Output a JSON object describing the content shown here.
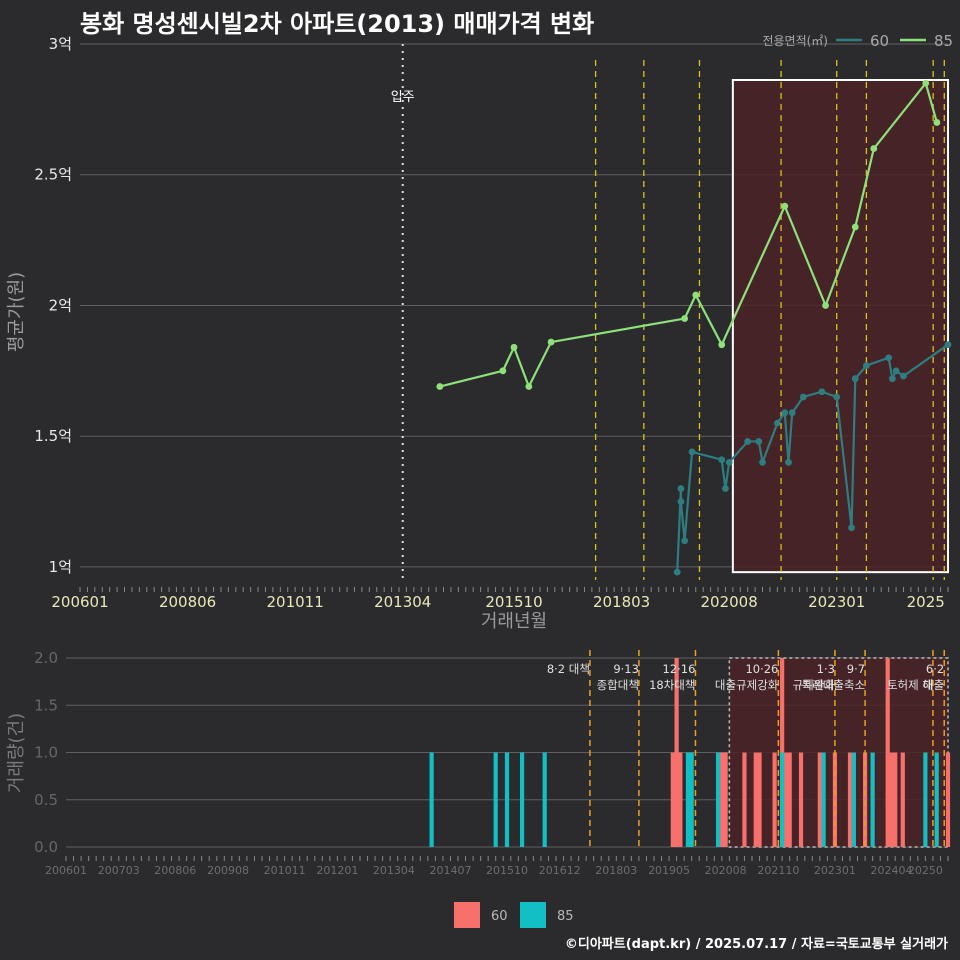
{
  "title": "봉화 명성센시빌2차 아파트(2013) 매매가격 변화",
  "credit": "©디아파트(dapt.kr) / 2025.07.17 / 자료=국토교통부 실거래가",
  "colors": {
    "bg": "#2b2b2d",
    "s60": "#2e7d80",
    "s85": "#8ee07a",
    "b60": "#f7706b",
    "b85": "#12bfc4",
    "policy": "#d9c21c",
    "policy_bottom": "#e8a21b",
    "highlight": "#4a2227"
  },
  "chart_data": [
    {
      "type": "line",
      "xlabel": "거래년월",
      "ylabel": "평균가(원)",
      "y_ticks": [
        "1억",
        "1.5억",
        "2억",
        "2.5억",
        "3억"
      ],
      "y_tick_values": [
        1.0,
        1.5,
        2.0,
        2.5,
        3.0
      ],
      "ylim": [
        0.95,
        3.0
      ],
      "x_tick_labels": [
        "200601",
        "200806",
        "201011",
        "201304",
        "201510",
        "201803",
        "202008",
        "202301",
        "2025"
      ],
      "xlim": [
        "2006-01",
        "2025-07"
      ],
      "legend_title": "전용면적(㎡)",
      "legend_position": "top-right",
      "annotation_move_in": {
        "label": "입주",
        "x": "2013-04"
      },
      "policy_lines": [
        "2017-08",
        "2018-09",
        "2019-12",
        "2021-10",
        "2023-01",
        "2023-09",
        "2025-03",
        "2025-06"
      ],
      "highlight_range": [
        "2020-09",
        "2025-07"
      ],
      "series": [
        {
          "name": "60",
          "points": [
            [
              "2019-06",
              0.98
            ],
            [
              "2019-07",
              1.3
            ],
            [
              "2019-07",
              1.25
            ],
            [
              "2019-08",
              1.1
            ],
            [
              "2019-10",
              1.44
            ],
            [
              "2020-06",
              1.41
            ],
            [
              "2020-07",
              1.3
            ],
            [
              "2020-08",
              1.4
            ],
            [
              "2021-01",
              1.48
            ],
            [
              "2021-04",
              1.48
            ],
            [
              "2021-05",
              1.4
            ],
            [
              "2021-09",
              1.55
            ],
            [
              "2021-11",
              1.59
            ],
            [
              "2021-12",
              1.4
            ],
            [
              "2022-01",
              1.59
            ],
            [
              "2022-04",
              1.65
            ],
            [
              "2022-09",
              1.67
            ],
            [
              "2023-01",
              1.65
            ],
            [
              "2023-05",
              1.15
            ],
            [
              "2023-06",
              1.72
            ],
            [
              "2023-09",
              1.77
            ],
            [
              "2024-03",
              1.8
            ],
            [
              "2024-04",
              1.72
            ],
            [
              "2024-05",
              1.75
            ],
            [
              "2024-07",
              1.73
            ],
            [
              "2025-07",
              1.85
            ]
          ]
        },
        {
          "name": "85",
          "points": [
            [
              "2014-02",
              1.69
            ],
            [
              "2015-07",
              1.75
            ],
            [
              "2015-10",
              1.84
            ],
            [
              "2016-02",
              1.69
            ],
            [
              "2016-08",
              1.86
            ],
            [
              "2019-08",
              1.95
            ],
            [
              "2019-11",
              2.04
            ],
            [
              "2020-06",
              1.85
            ],
            [
              "2021-11",
              2.38
            ],
            [
              "2022-10",
              2.0
            ],
            [
              "2023-06",
              2.3
            ],
            [
              "2023-11",
              2.6
            ],
            [
              "2025-01",
              2.85
            ],
            [
              "2025-04",
              2.7
            ]
          ]
        }
      ]
    },
    {
      "type": "bar",
      "ylabel": "거래량(건)",
      "y_ticks": [
        "0.0",
        "0.5",
        "1.0",
        "1.5",
        "2.0"
      ],
      "y_tick_values": [
        0.0,
        0.5,
        1.0,
        1.5,
        2.0
      ],
      "ylim": [
        0,
        2.0
      ],
      "x_tick_labels": [
        "200601",
        "200703",
        "200806",
        "200908",
        "201011",
        "201201",
        "201304",
        "201407",
        "201510",
        "201612",
        "201803",
        "201905",
        "202008",
        "202110",
        "202301",
        "202404",
        "20250"
      ],
      "legend_position": "bottom",
      "policy_labels": [
        {
          "x": "2017-08",
          "lines": [
            "8·2 대책"
          ]
        },
        {
          "x": "2018-09",
          "lines": [
            "9·13",
            "종합대책"
          ]
        },
        {
          "x": "2019-12",
          "lines": [
            "12·16",
            "18차대책"
          ]
        },
        {
          "x": "2021-10",
          "lines": [
            "10·26",
            "대출규제강화"
          ]
        },
        {
          "x": "2023-01",
          "lines": [
            "1·3",
            "규제완화"
          ]
        },
        {
          "x": "2023-09",
          "lines": [
            "9·7",
            "특례대출축소"
          ]
        },
        {
          "x": "2025-03",
          "lines": [
            "",
            "토허제 해"
          ]
        },
        {
          "x": "2025-06",
          "lines": [
            "6·2",
            "대출"
          ]
        }
      ],
      "series": [
        {
          "name": "60",
          "bars": [
            [
              "2019-06",
              1
            ],
            [
              "2019-07",
              2
            ],
            [
              "2019-08",
              1
            ],
            [
              "2020-06",
              1
            ],
            [
              "2020-07",
              1
            ],
            [
              "2020-08",
              1
            ],
            [
              "2021-01",
              1
            ],
            [
              "2021-04",
              1
            ],
            [
              "2021-05",
              1
            ],
            [
              "2021-09",
              1
            ],
            [
              "2021-11",
              2
            ],
            [
              "2021-12",
              1
            ],
            [
              "2022-01",
              1
            ],
            [
              "2022-04",
              1
            ],
            [
              "2022-09",
              1
            ],
            [
              "2023-01",
              1
            ],
            [
              "2023-05",
              1
            ],
            [
              "2023-06",
              1
            ],
            [
              "2023-09",
              1
            ],
            [
              "2024-03",
              2
            ],
            [
              "2024-04",
              1
            ],
            [
              "2024-05",
              1
            ],
            [
              "2024-07",
              1
            ],
            [
              "2025-07",
              1
            ]
          ]
        },
        {
          "name": "85",
          "bars": [
            [
              "2014-02",
              1
            ],
            [
              "2015-07",
              1
            ],
            [
              "2015-10",
              1
            ],
            [
              "2016-02",
              1
            ],
            [
              "2016-08",
              1
            ],
            [
              "2019-10",
              1
            ],
            [
              "2019-11",
              1
            ],
            [
              "2020-06",
              1
            ],
            [
              "2021-11",
              1
            ],
            [
              "2022-10",
              1
            ],
            [
              "2023-06",
              1
            ],
            [
              "2023-11",
              1
            ],
            [
              "2025-01",
              1
            ],
            [
              "2025-04",
              1
            ]
          ]
        }
      ]
    }
  ]
}
